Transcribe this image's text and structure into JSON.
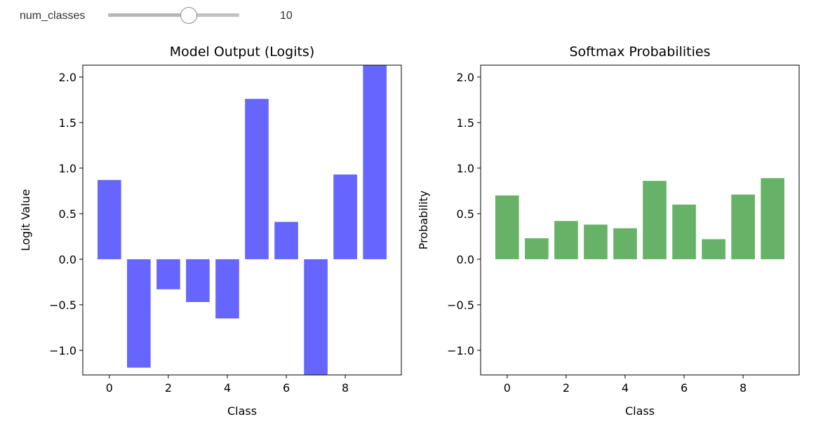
{
  "widget": {
    "label": "num_classes",
    "value": "10",
    "min": 2,
    "max": 15,
    "current": 10
  },
  "chart_data": [
    {
      "type": "bar",
      "title": "Model Output (Logits)",
      "xlabel": "Class",
      "ylabel": "Logit Value",
      "x": [
        0,
        1,
        2,
        3,
        4,
        5,
        6,
        7,
        8,
        9
      ],
      "values": [
        0.87,
        -1.19,
        -0.33,
        -0.47,
        -0.65,
        1.76,
        0.41,
        -1.27,
        0.93,
        2.13
      ],
      "color": "#6666ff",
      "xlim": [
        -0.9,
        9.9
      ],
      "ylim": [
        -1.27,
        2.13
      ],
      "xticks": [
        0,
        2,
        4,
        6,
        8
      ],
      "xtick_labels": [
        "0",
        "2",
        "4",
        "6",
        "8"
      ],
      "yticks": [
        -1.0,
        -0.5,
        0.0,
        0.5,
        1.0,
        1.5,
        2.0
      ],
      "ytick_labels": [
        "−1.0",
        "−0.5",
        "0.0",
        "0.5",
        "1.0",
        "1.5",
        "2.0"
      ]
    },
    {
      "type": "bar",
      "title": "Softmax Probabilities",
      "xlabel": "Class",
      "ylabel": "Probability",
      "x": [
        0,
        1,
        2,
        3,
        4,
        5,
        6,
        7,
        8,
        9
      ],
      "values": [
        0.7,
        0.23,
        0.42,
        0.38,
        0.34,
        0.86,
        0.6,
        0.22,
        0.71,
        0.89
      ],
      "color": "#66b266",
      "xlim": [
        -0.9,
        9.9
      ],
      "ylim": [
        -1.27,
        2.13
      ],
      "xticks": [
        0,
        2,
        4,
        6,
        8
      ],
      "xtick_labels": [
        "0",
        "2",
        "4",
        "6",
        "8"
      ],
      "yticks": [
        -1.0,
        -0.5,
        0.0,
        0.5,
        1.0,
        1.5,
        2.0
      ],
      "ytick_labels": [
        "−1.0",
        "−0.5",
        "0.0",
        "0.5",
        "1.0",
        "1.5",
        "2.0"
      ]
    }
  ]
}
